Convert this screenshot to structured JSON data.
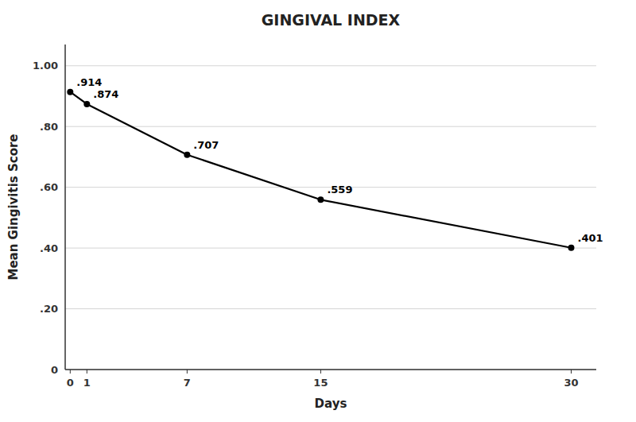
{
  "chart_data": {
    "type": "line",
    "title": "GINGIVAL INDEX",
    "x_label": "Days",
    "y_label": "Mean Gingivitis Score",
    "x": [
      0,
      1,
      7,
      15,
      30
    ],
    "values": [
      0.914,
      0.874,
      0.707,
      0.559,
      0.401
    ],
    "value_labels": [
      ".914",
      ".874",
      ".707",
      ".559",
      ".401"
    ],
    "data_labels": true,
    "color": "#000000",
    "marker": "circle",
    "grid": true,
    "xlim": [
      -0.3,
      31.5
    ],
    "ylim": [
      0,
      1.07
    ],
    "xticks": [
      0,
      1,
      7,
      15,
      30
    ],
    "yticks": [
      0,
      {
        "value": 0.2,
        "label": ".20"
      },
      {
        "value": 0.4,
        "label": ".40"
      },
      {
        "value": 0.6,
        "label": ".60"
      },
      {
        "value": 0.8,
        "label": ".80"
      },
      {
        "value": 1,
        "label": "1.00"
      }
    ]
  }
}
